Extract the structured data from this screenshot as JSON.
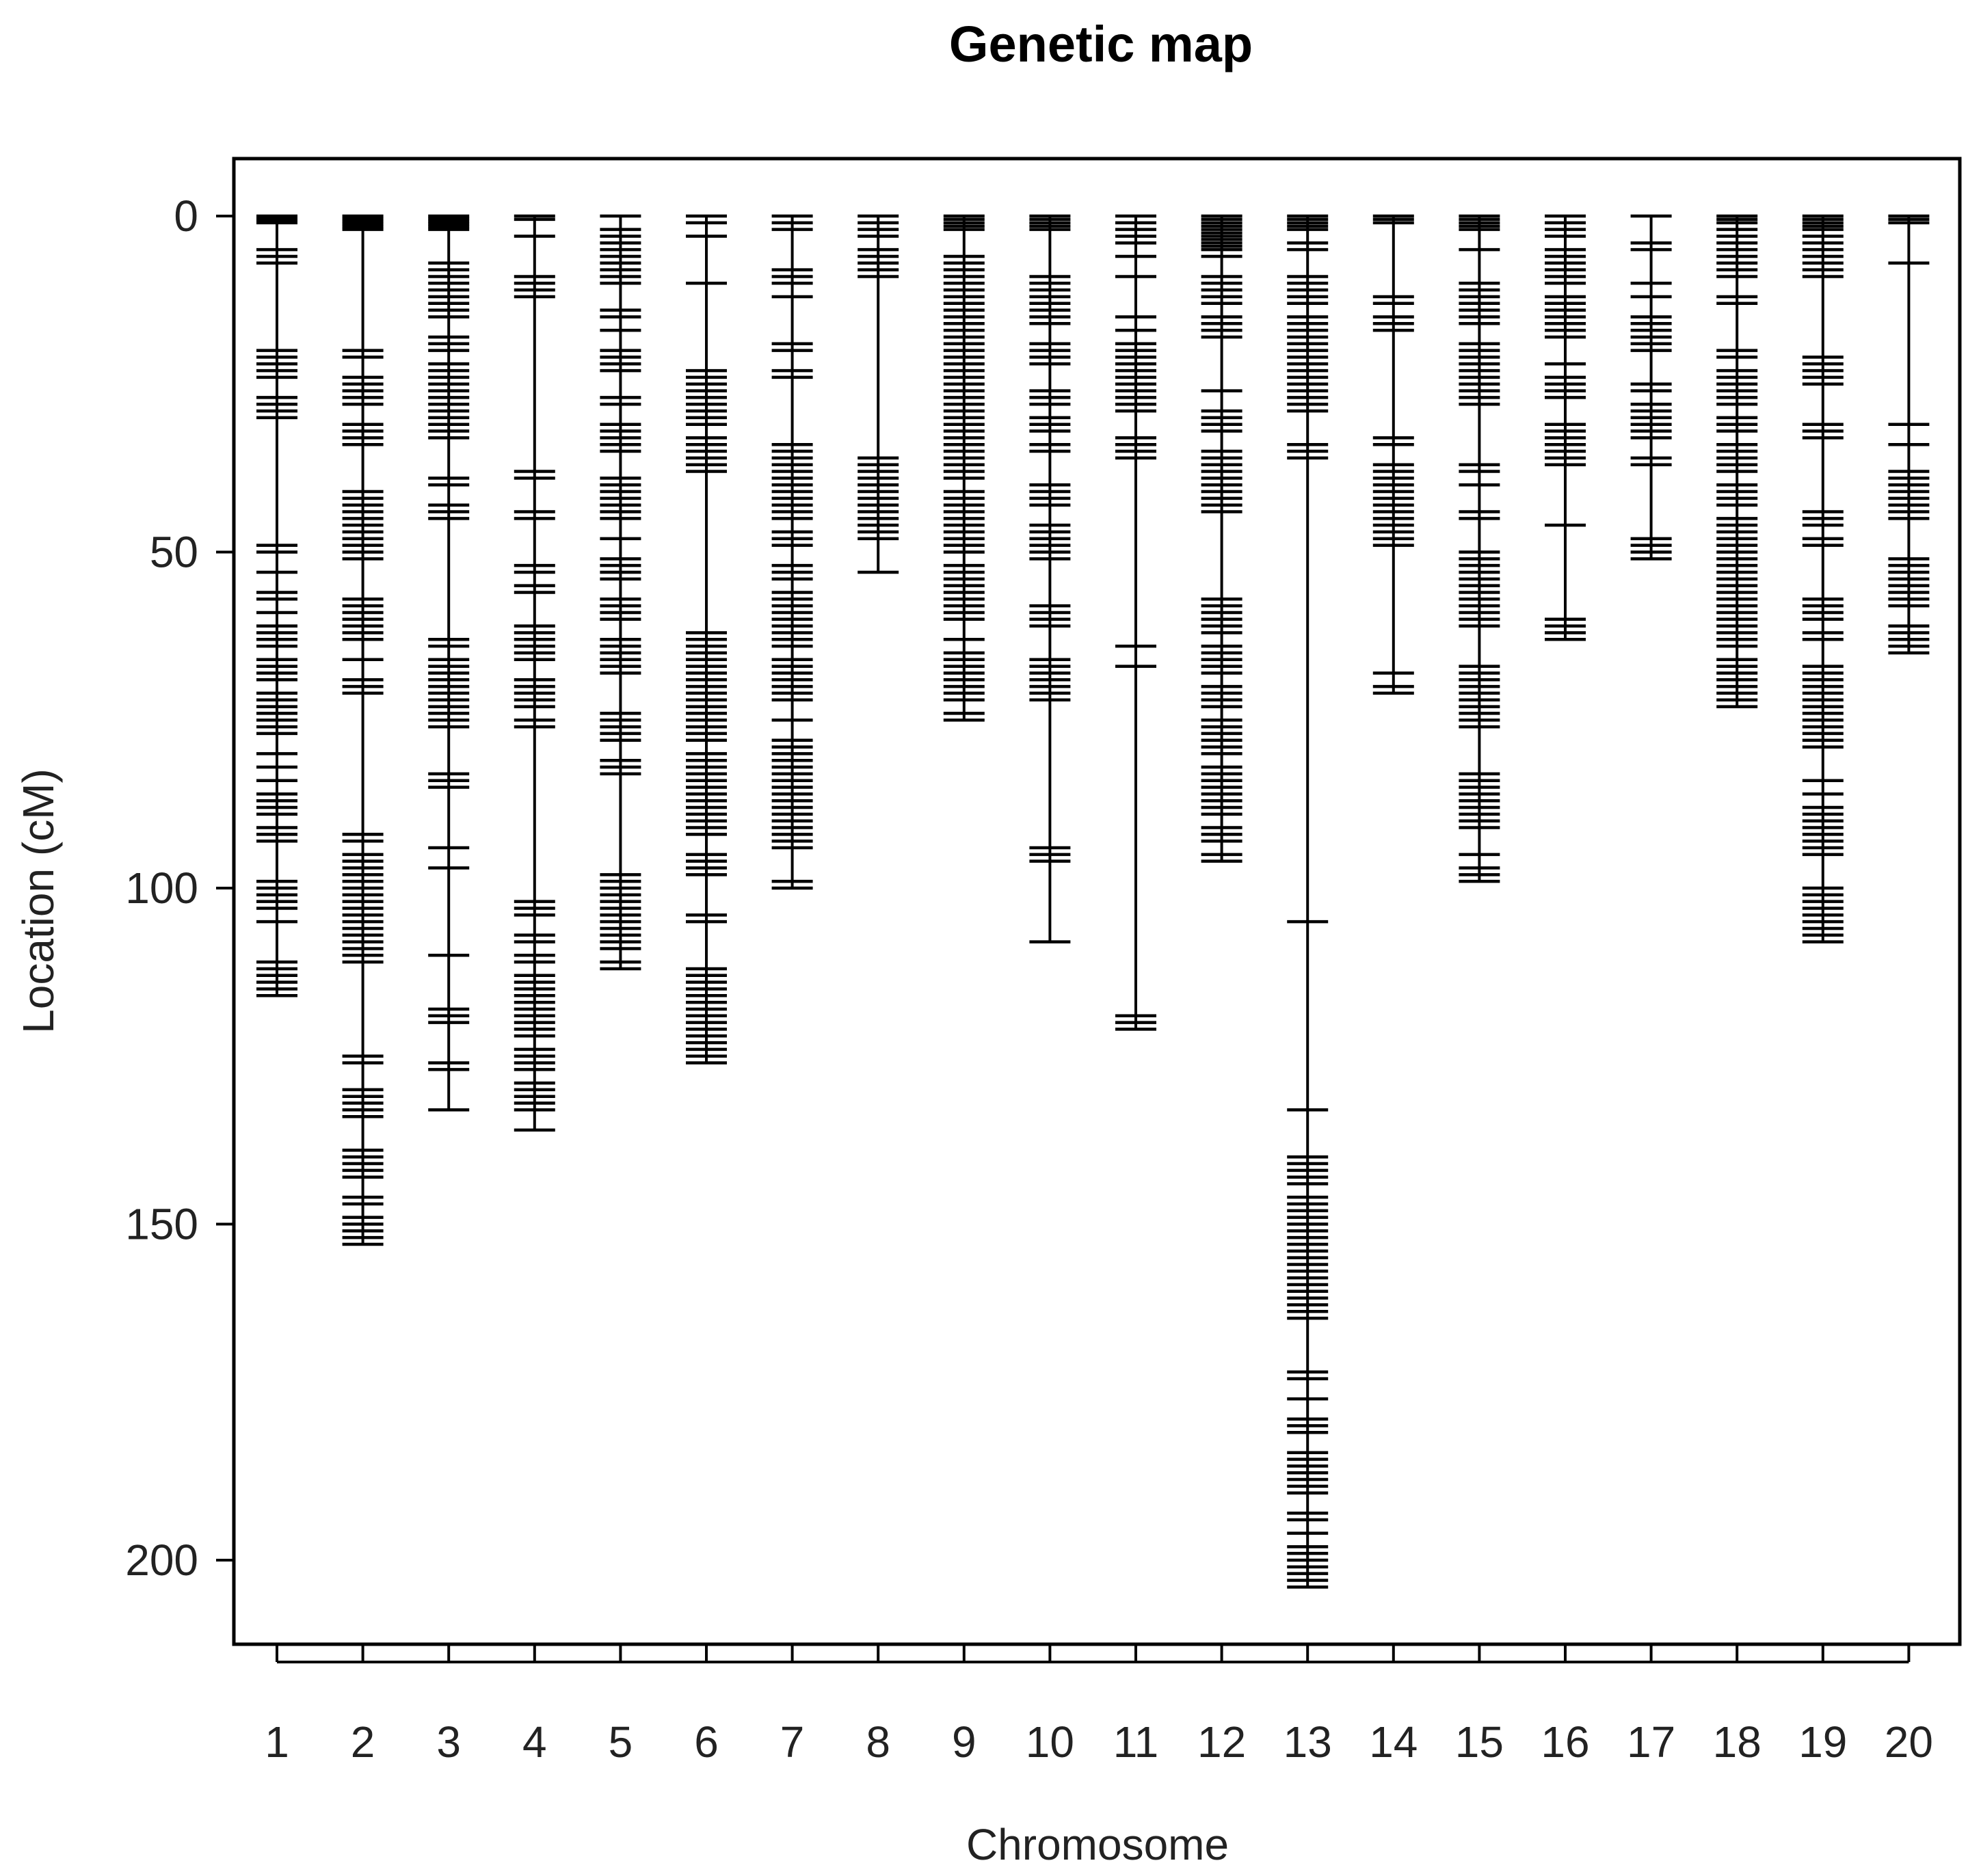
{
  "chart_data": {
    "type": "genetic-linkage-map",
    "title": "Genetic map",
    "xlabel": "Chromosome",
    "ylabel": "Location (cM)",
    "ylim": [
      0,
      212
    ],
    "y_axis_inverted": true,
    "y_ticks": [
      0,
      50,
      100,
      150,
      200
    ],
    "chromosomes": [
      {
        "label": "1",
        "markers": [
          0,
          0.3,
          0.6,
          1,
          5,
          6,
          7,
          20,
          21,
          22,
          23,
          24,
          27,
          28,
          29,
          30,
          49,
          50,
          53,
          56,
          57,
          59,
          61,
          62,
          63,
          64,
          66,
          67,
          68,
          69,
          71,
          72,
          73,
          74,
          75,
          76,
          77,
          80,
          82,
          84,
          86,
          87,
          88,
          89,
          91,
          92,
          93,
          99,
          100,
          101,
          102,
          103,
          105,
          111,
          112,
          113,
          114,
          115,
          116
        ]
      },
      {
        "label": "2",
        "markers": [
          0,
          0.4,
          0.8,
          1.2,
          1.6,
          2,
          20,
          21,
          24,
          25,
          26,
          27,
          28,
          31,
          32,
          33,
          34,
          41,
          42,
          43,
          44,
          45,
          46,
          47,
          48,
          49,
          50,
          51,
          57,
          58,
          59,
          60,
          61,
          62,
          63,
          66,
          69,
          70,
          71,
          92,
          93,
          95,
          96,
          97,
          98,
          99,
          100,
          101,
          102,
          103,
          104,
          105,
          106,
          107,
          108,
          109,
          110,
          111,
          125,
          126,
          130,
          131,
          132,
          133,
          134,
          139,
          140,
          141,
          142,
          143,
          146,
          147,
          149,
          150,
          151,
          152,
          153
        ]
      },
      {
        "label": "3",
        "markers": [
          0,
          0.4,
          0.8,
          1.2,
          1.6,
          2,
          7,
          8,
          9,
          10,
          11,
          12,
          13,
          14,
          15,
          18,
          19,
          20,
          22,
          23,
          24,
          25,
          26,
          27,
          28,
          29,
          30,
          31,
          32,
          33,
          39,
          40,
          43,
          44,
          45,
          63,
          64,
          66,
          67,
          68,
          69,
          70,
          71,
          72,
          73,
          74,
          75,
          76,
          83,
          84,
          85,
          94,
          97,
          110,
          118,
          119,
          120,
          126,
          127,
          133
        ]
      },
      {
        "label": "4",
        "markers": [
          0,
          0.5,
          3,
          9,
          10,
          11,
          12,
          38,
          39,
          44,
          45,
          52,
          53,
          55,
          56,
          61,
          62,
          63,
          64,
          65,
          66,
          69,
          70,
          71,
          72,
          73,
          75,
          76,
          102,
          103,
          104,
          107,
          108,
          110,
          111,
          113,
          114,
          115,
          116,
          117,
          118,
          119,
          120,
          121,
          122,
          124,
          125,
          126,
          127,
          129,
          130,
          131,
          132,
          133,
          136
        ]
      },
      {
        "label": "5",
        "markers": [
          0,
          2,
          3,
          4,
          5,
          6,
          7,
          8,
          9,
          10,
          14,
          15,
          17,
          20,
          21,
          22,
          23,
          27,
          28,
          31,
          32,
          33,
          34,
          35,
          39,
          40,
          41,
          42,
          43,
          44,
          45,
          48,
          51,
          52,
          53,
          54,
          57,
          58,
          59,
          60,
          63,
          64,
          65,
          66,
          67,
          68,
          74,
          75,
          76,
          77,
          78,
          81,
          82,
          83,
          98,
          99,
          100,
          101,
          102,
          103,
          104,
          105,
          106,
          107,
          108,
          109,
          111,
          112
        ]
      },
      {
        "label": "6",
        "markers": [
          0,
          1,
          3,
          10,
          23,
          24,
          25,
          26,
          27,
          28,
          29,
          30,
          31,
          33,
          34,
          35,
          36,
          37,
          38,
          62,
          63,
          64,
          65,
          66,
          67,
          68,
          69,
          70,
          71,
          72,
          73,
          74,
          75,
          76,
          77,
          78,
          80,
          81,
          82,
          83,
          84,
          85,
          86,
          87,
          88,
          89,
          90,
          91,
          92,
          95,
          96,
          97,
          98,
          104,
          105,
          112,
          113,
          114,
          115,
          116,
          117,
          118,
          119,
          120,
          121,
          122,
          123,
          124,
          125,
          126
        ]
      },
      {
        "label": "7",
        "markers": [
          0,
          1,
          2,
          8,
          9,
          10,
          12,
          19,
          20,
          23,
          24,
          34,
          35,
          36,
          37,
          38,
          39,
          40,
          41,
          42,
          43,
          44,
          45,
          47,
          48,
          49,
          52,
          53,
          54,
          56,
          57,
          58,
          59,
          60,
          61,
          62,
          63,
          64,
          66,
          67,
          68,
          69,
          70,
          71,
          72,
          75,
          78,
          79,
          80,
          81,
          82,
          83,
          84,
          85,
          86,
          87,
          88,
          89,
          90,
          91,
          92,
          93,
          94,
          99,
          100
        ]
      },
      {
        "label": "8",
        "markers": [
          0,
          1,
          2,
          3,
          5,
          6,
          7,
          8,
          9,
          36,
          37,
          38,
          39,
          40,
          41,
          42,
          43,
          44,
          45,
          46,
          47,
          48,
          53
        ]
      },
      {
        "label": "9",
        "markers": [
          0,
          0.5,
          1,
          1.5,
          2,
          6,
          7,
          8,
          9,
          10,
          11,
          12,
          13,
          14,
          15,
          16,
          17,
          18,
          19,
          20,
          21,
          22,
          23,
          24,
          25,
          26,
          27,
          28,
          29,
          30,
          31,
          32,
          33,
          34,
          35,
          36,
          37,
          38,
          39,
          41,
          42,
          43,
          44,
          45,
          46,
          47,
          48,
          49,
          50,
          52,
          53,
          54,
          55,
          56,
          57,
          58,
          59,
          60,
          63,
          65,
          66,
          67,
          68,
          69,
          70,
          71,
          72,
          74,
          75
        ]
      },
      {
        "label": "10",
        "markers": [
          0,
          0.5,
          1,
          1.5,
          2,
          9,
          10,
          11,
          12,
          13,
          14,
          15,
          16,
          19,
          20,
          21,
          22,
          26,
          27,
          28,
          30,
          31,
          32,
          34,
          35,
          40,
          41,
          42,
          43,
          46,
          47,
          48,
          49,
          50,
          51,
          58,
          59,
          60,
          61,
          66,
          67,
          68,
          69,
          70,
          71,
          72,
          94,
          95,
          96,
          108
        ]
      },
      {
        "label": "11",
        "markers": [
          0,
          1,
          2,
          3,
          4,
          6,
          9,
          15,
          17,
          19,
          20,
          21,
          22,
          23,
          24,
          25,
          26,
          27,
          28,
          29,
          33,
          34,
          35,
          36,
          64,
          67,
          119,
          120,
          121
        ]
      },
      {
        "label": "12",
        "markers": [
          0,
          0.5,
          1,
          1.5,
          2,
          2.5,
          3,
          3.5,
          4,
          4.5,
          5,
          6,
          9,
          10,
          11,
          12,
          13,
          15,
          16,
          17,
          18,
          26,
          29,
          30,
          31,
          32,
          35,
          36,
          37,
          38,
          39,
          40,
          41,
          42,
          43,
          44,
          57,
          58,
          59,
          60,
          61,
          62,
          64,
          65,
          66,
          67,
          68,
          70,
          71,
          72,
          73,
          75,
          76,
          77,
          78,
          79,
          80,
          82,
          83,
          84,
          85,
          86,
          87,
          88,
          89,
          91,
          92,
          93,
          95,
          96
        ]
      },
      {
        "label": "13",
        "markers": [
          0,
          0.5,
          1,
          1.5,
          2,
          4,
          5,
          9,
          10,
          11,
          12,
          13,
          15,
          16,
          17,
          18,
          19,
          20,
          21,
          22,
          23,
          24,
          25,
          26,
          27,
          28,
          29,
          34,
          35,
          36,
          105,
          133,
          140,
          141,
          142,
          143,
          144,
          146,
          147,
          148,
          149,
          150,
          151,
          152,
          153,
          154,
          155,
          156,
          157,
          158,
          159,
          160,
          161,
          162,
          163,
          164,
          172,
          173,
          176,
          179,
          180,
          181,
          184,
          185,
          186,
          187,
          188,
          189,
          190,
          193,
          194,
          196,
          198,
          199,
          200,
          201,
          202,
          203,
          204
        ]
      },
      {
        "label": "14",
        "markers": [
          0,
          0.5,
          1,
          12,
          13,
          15,
          16,
          17,
          33,
          34,
          37,
          38,
          39,
          40,
          41,
          42,
          43,
          44,
          45,
          46,
          47,
          48,
          49,
          68,
          70,
          71
        ]
      },
      {
        "label": "15",
        "markers": [
          0,
          0.5,
          1,
          1.5,
          2,
          5,
          10,
          11,
          12,
          13,
          14,
          15,
          16,
          19,
          20,
          21,
          22,
          23,
          24,
          25,
          26,
          27,
          28,
          37,
          38,
          40,
          44,
          45,
          50,
          51,
          52,
          53,
          54,
          55,
          56,
          57,
          58,
          59,
          60,
          61,
          67,
          68,
          69,
          70,
          71,
          72,
          73,
          74,
          75,
          76,
          83,
          84,
          85,
          86,
          87,
          88,
          89,
          90,
          91,
          95,
          97,
          98,
          99
        ]
      },
      {
        "label": "16",
        "markers": [
          0,
          1,
          2,
          3,
          5,
          6,
          7,
          8,
          9,
          10,
          12,
          13,
          14,
          15,
          16,
          17,
          18,
          22,
          24,
          25,
          26,
          27,
          31,
          32,
          33,
          34,
          35,
          36,
          37,
          46,
          60,
          61,
          62,
          63
        ]
      },
      {
        "label": "17",
        "markers": [
          0,
          4,
          5,
          10,
          12,
          15,
          16,
          17,
          18,
          19,
          20,
          25,
          26,
          28,
          29,
          30,
          31,
          32,
          33,
          36,
          37,
          48,
          49,
          50,
          51
        ]
      },
      {
        "label": "18",
        "markers": [
          0,
          0.5,
          1,
          2,
          3,
          4,
          5,
          6,
          7,
          8,
          9,
          12,
          13,
          20,
          21,
          23,
          24,
          25,
          26,
          27,
          28,
          30,
          31,
          32,
          34,
          35,
          36,
          37,
          38,
          40,
          41,
          42,
          43,
          45,
          46,
          47,
          48,
          49,
          50,
          51,
          52,
          53,
          54,
          55,
          56,
          57,
          58,
          59,
          60,
          61,
          62,
          63,
          64,
          66,
          67,
          68,
          69,
          70,
          71,
          72,
          73
        ]
      },
      {
        "label": "19",
        "markers": [
          0,
          0.5,
          1,
          1.5,
          2,
          3,
          4,
          5,
          6,
          7,
          8,
          9,
          21,
          22,
          23,
          24,
          25,
          31,
          32,
          33,
          44,
          45,
          46,
          48,
          49,
          57,
          58,
          59,
          60,
          62,
          63,
          67,
          68,
          69,
          70,
          71,
          72,
          73,
          74,
          75,
          76,
          77,
          78,
          79,
          84,
          86,
          88,
          89,
          90,
          91,
          92,
          93,
          94,
          95,
          100,
          101,
          102,
          103,
          104,
          105,
          106,
          107,
          108
        ]
      },
      {
        "label": "20",
        "markers": [
          0,
          0.5,
          1,
          7,
          31,
          34,
          38,
          39,
          40,
          41,
          42,
          43,
          44,
          45,
          51,
          52,
          53,
          54,
          55,
          56,
          57,
          58,
          61,
          62,
          63,
          64,
          65
        ]
      }
    ]
  }
}
